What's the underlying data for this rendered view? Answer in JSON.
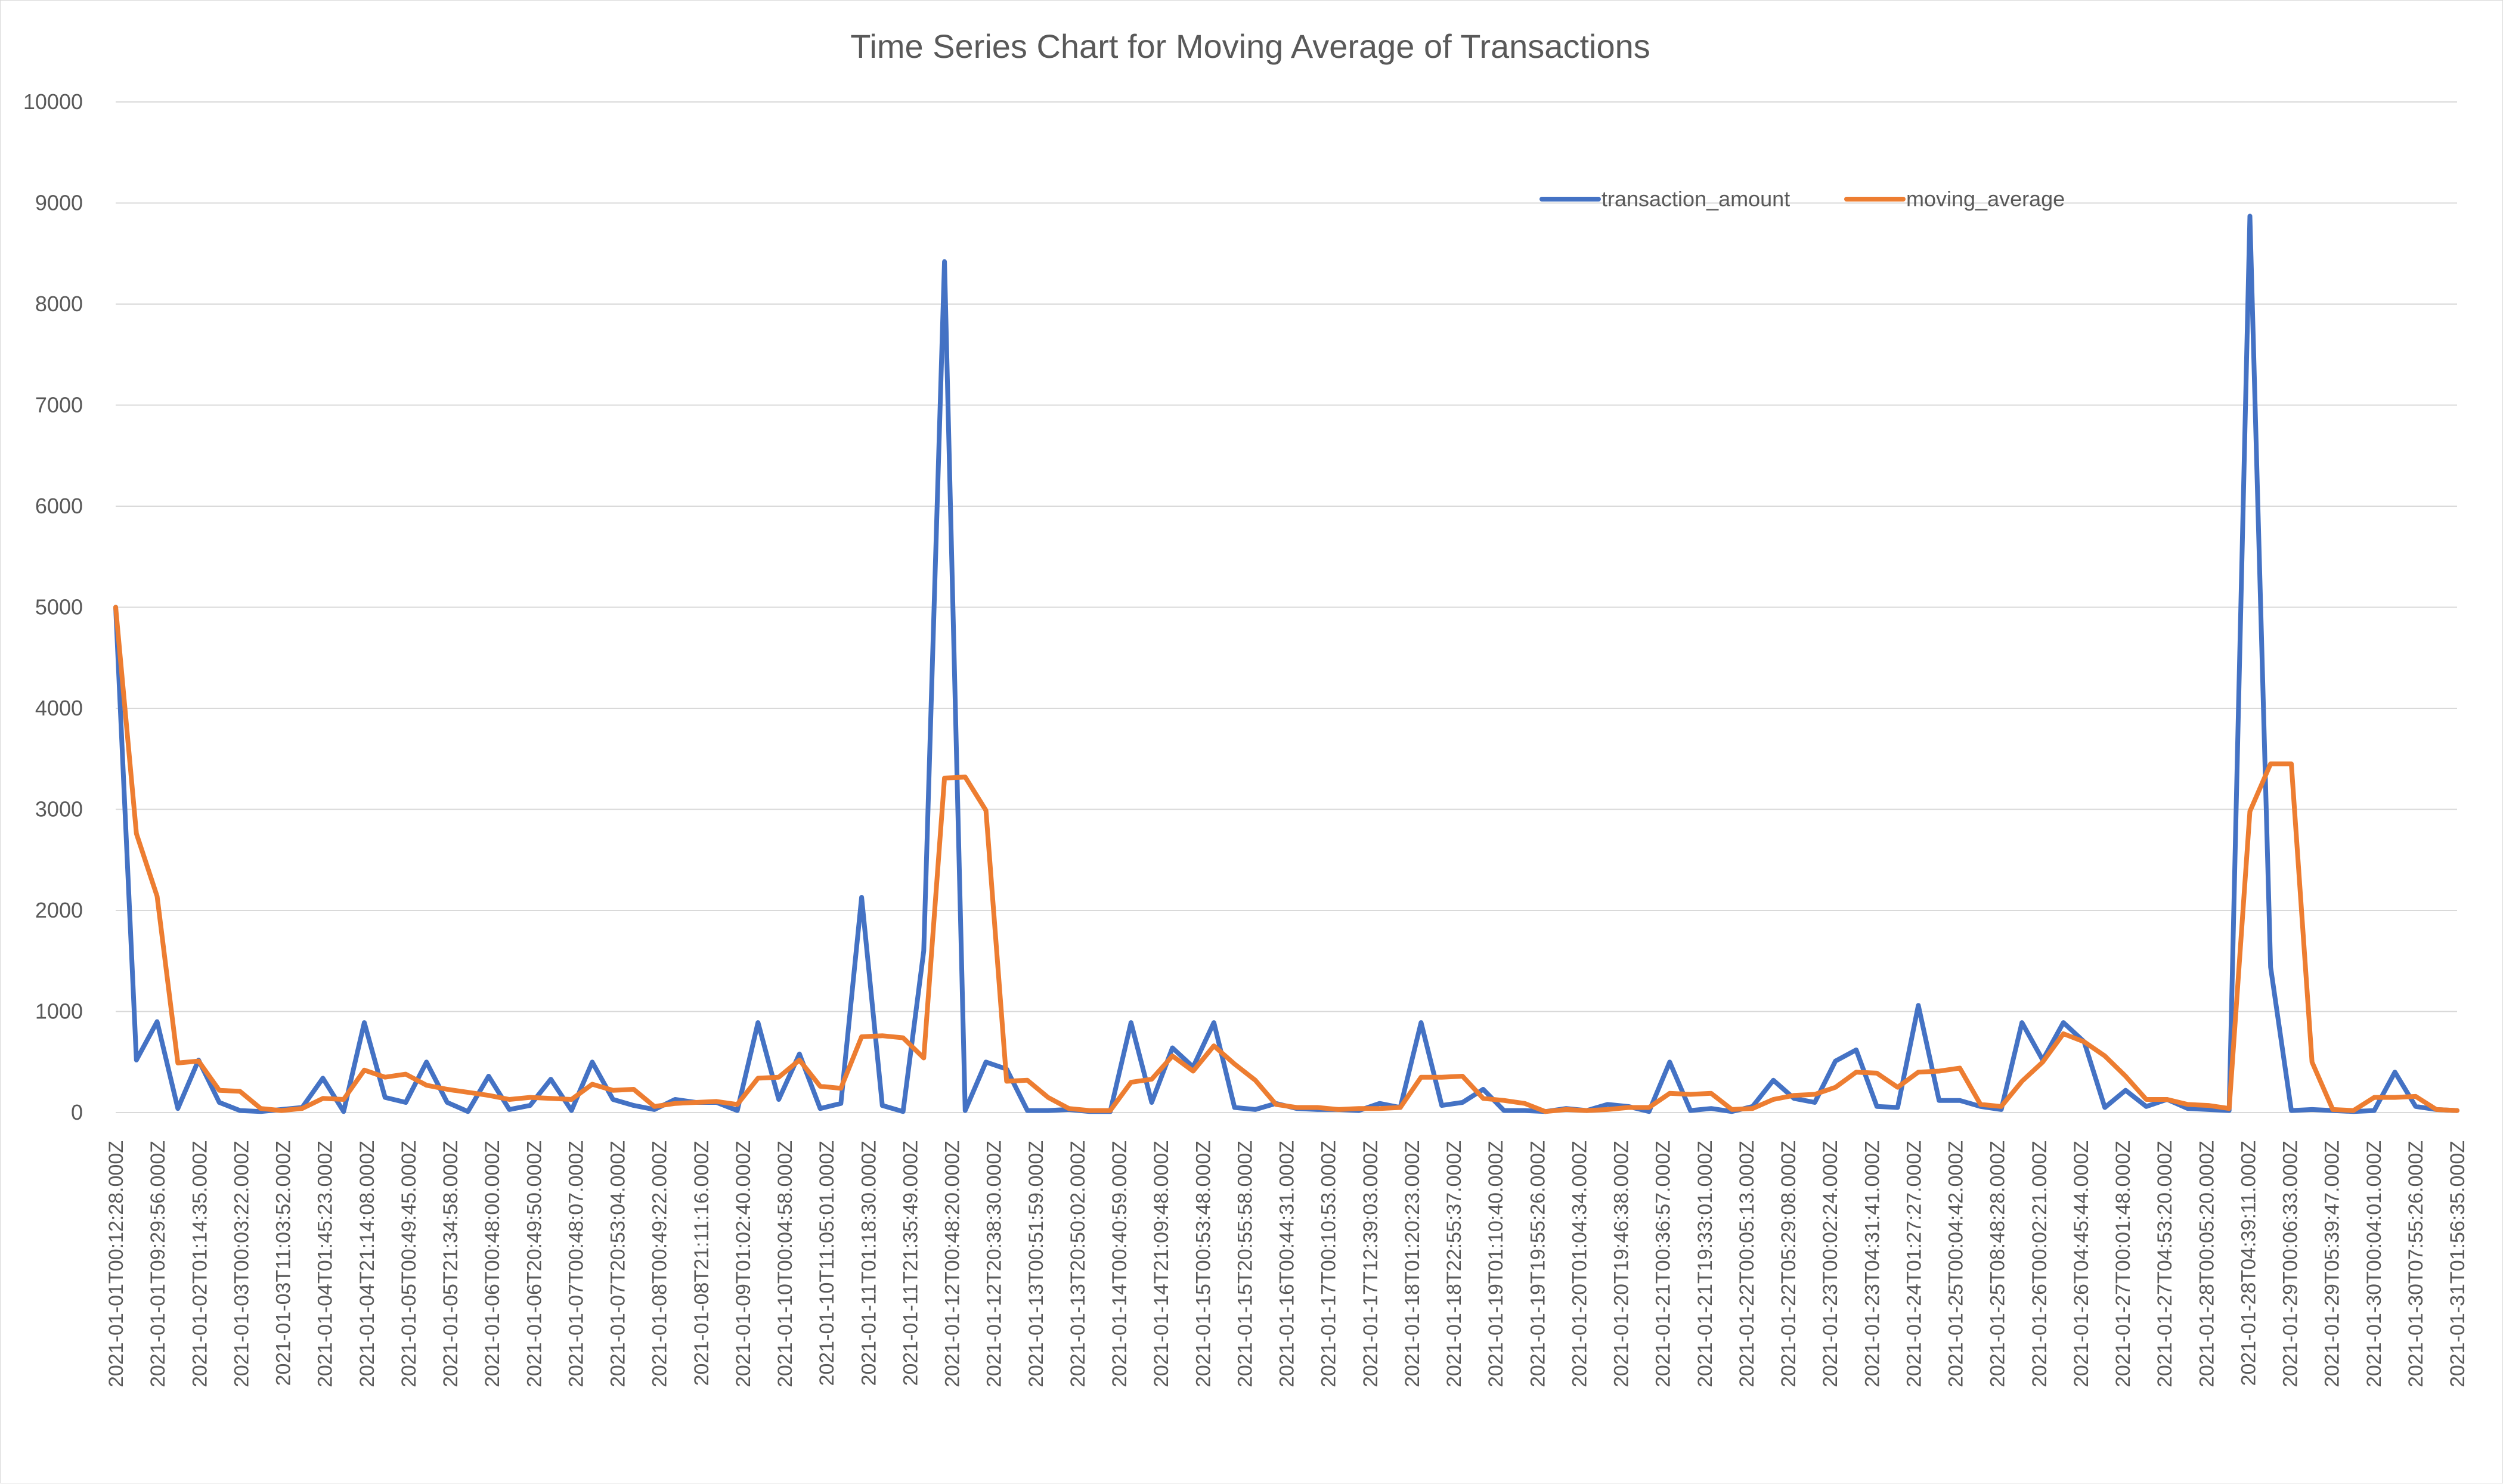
{
  "chart_data": {
    "type": "line",
    "title": "Time Series Chart for Moving Average of Transactions",
    "xlabel": "",
    "ylabel": "",
    "ylim": [
      0,
      10000
    ],
    "y_ticks": [
      0,
      1000,
      2000,
      3000,
      4000,
      5000,
      6000,
      7000,
      8000,
      9000,
      10000
    ],
    "grid": true,
    "legend_position": "top-right",
    "x_tick_labels": [
      "2021-01-01T00:12:28.000Z",
      "2021-01-01T09:29:56.000Z",
      "2021-01-02T01:14:35.000Z",
      "2021-01-03T00:03:22.000Z",
      "2021-01-03T11:03:52.000Z",
      "2021-01-04T01:45:23.000Z",
      "2021-01-04T21:14:08.000Z",
      "2021-01-05T00:49:45.000Z",
      "2021-01-05T21:34:58.000Z",
      "2021-01-06T00:48:00.000Z",
      "2021-01-06T20:49:50.000Z",
      "2021-01-07T00:48:07.000Z",
      "2021-01-07T20:53:04.000Z",
      "2021-01-08T00:49:22.000Z",
      "2021-01-08T21:11:16.000Z",
      "2021-01-09T01:02:40.000Z",
      "2021-01-10T00:04:58.000Z",
      "2021-01-10T11:05:01.000Z",
      "2021-01-11T01:18:30.000Z",
      "2021-01-11T21:35:49.000Z",
      "2021-01-12T00:48:20.000Z",
      "2021-01-12T20:38:30.000Z",
      "2021-01-13T00:51:59.000Z",
      "2021-01-13T20:50:02.000Z",
      "2021-01-14T00:40:59.000Z",
      "2021-01-14T21:09:48.000Z",
      "2021-01-15T00:53:48.000Z",
      "2021-01-15T20:55:58.000Z",
      "2021-01-16T00:44:31.000Z",
      "2021-01-17T00:10:53.000Z",
      "2021-01-17T12:39:03.000Z",
      "2021-01-18T01:20:23.000Z",
      "2021-01-18T22:55:37.000Z",
      "2021-01-19T01:10:40.000Z",
      "2021-01-19T19:55:26.000Z",
      "2021-01-20T01:04:34.000Z",
      "2021-01-20T19:46:38.000Z",
      "2021-01-21T00:36:57.000Z",
      "2021-01-21T19:33:01.000Z",
      "2021-01-22T00:05:13.000Z",
      "2021-01-22T05:29:08.000Z",
      "2021-01-23T00:02:24.000Z",
      "2021-01-23T04:31:41.000Z",
      "2021-01-24T01:27:27.000Z",
      "2021-01-25T00:04:42.000Z",
      "2021-01-25T08:48:28.000Z",
      "2021-01-26T00:02:21.000Z",
      "2021-01-26T04:45:44.000Z",
      "2021-01-27T00:01:48.000Z",
      "2021-01-27T04:53:20.000Z",
      "2021-01-28T00:05:20.000Z",
      "2021-01-28T04:39:11.000Z",
      "2021-01-29T00:06:33.000Z",
      "2021-01-29T05:39:47.000Z",
      "2021-01-30T00:04:01.000Z",
      "2021-01-30T07:55:26.000Z",
      "2021-01-31T01:56:35.000Z"
    ],
    "series": [
      {
        "name": "transaction_amount",
        "color": "#4472C4",
        "values": [
          5000,
          520,
          900,
          40,
          520,
          100,
          20,
          10,
          30,
          50,
          340,
          10,
          890,
          150,
          100,
          500,
          100,
          10,
          360,
          30,
          70,
          330,
          20,
          500,
          130,
          70,
          30,
          130,
          100,
          100,
          20,
          890,
          130,
          580,
          40,
          90,
          2130,
          70,
          10,
          1600,
          8420,
          20,
          500,
          430,
          20,
          20,
          30,
          10,
          10,
          890,
          100,
          640,
          450,
          890,
          50,
          30,
          90,
          40,
          30,
          30,
          20,
          90,
          50,
          890,
          70,
          100,
          230,
          20,
          20,
          10,
          40,
          20,
          80,
          60,
          10,
          500,
          20,
          40,
          10,
          60,
          320,
          140,
          100,
          510,
          620,
          60,
          50,
          1060,
          120,
          120,
          60,
          30,
          890,
          520,
          890,
          700,
          50,
          220,
          60,
          130,
          40,
          30,
          20,
          8870,
          1440,
          20,
          30,
          20,
          10,
          20,
          400,
          60,
          30,
          20
        ]
      },
      {
        "name": "moving_average",
        "color": "#ED7D31",
        "values": [
          5000,
          2760,
          2140,
          490,
          510,
          220,
          210,
          40,
          20,
          40,
          140,
          130,
          420,
          350,
          380,
          270,
          230,
          200,
          170,
          130,
          150,
          140,
          130,
          280,
          220,
          230,
          60,
          90,
          100,
          110,
          80,
          340,
          350,
          520,
          260,
          240,
          750,
          760,
          740,
          540,
          3310,
          3320,
          2990,
          310,
          320,
          150,
          40,
          20,
          20,
          300,
          330,
          560,
          410,
          660,
          480,
          320,
          80,
          50,
          50,
          30,
          40,
          40,
          50,
          350,
          350,
          360,
          140,
          120,
          90,
          10,
          30,
          20,
          30,
          50,
          50,
          190,
          180,
          190,
          30,
          40,
          130,
          170,
          180,
          250,
          400,
          390,
          250,
          400,
          410,
          440,
          80,
          60,
          310,
          500,
          780,
          700,
          560,
          360,
          130,
          130,
          80,
          70,
          40,
          2980,
          3450,
          3450,
          500,
          30,
          20,
          150,
          150,
          160,
          30,
          20
        ]
      }
    ]
  }
}
